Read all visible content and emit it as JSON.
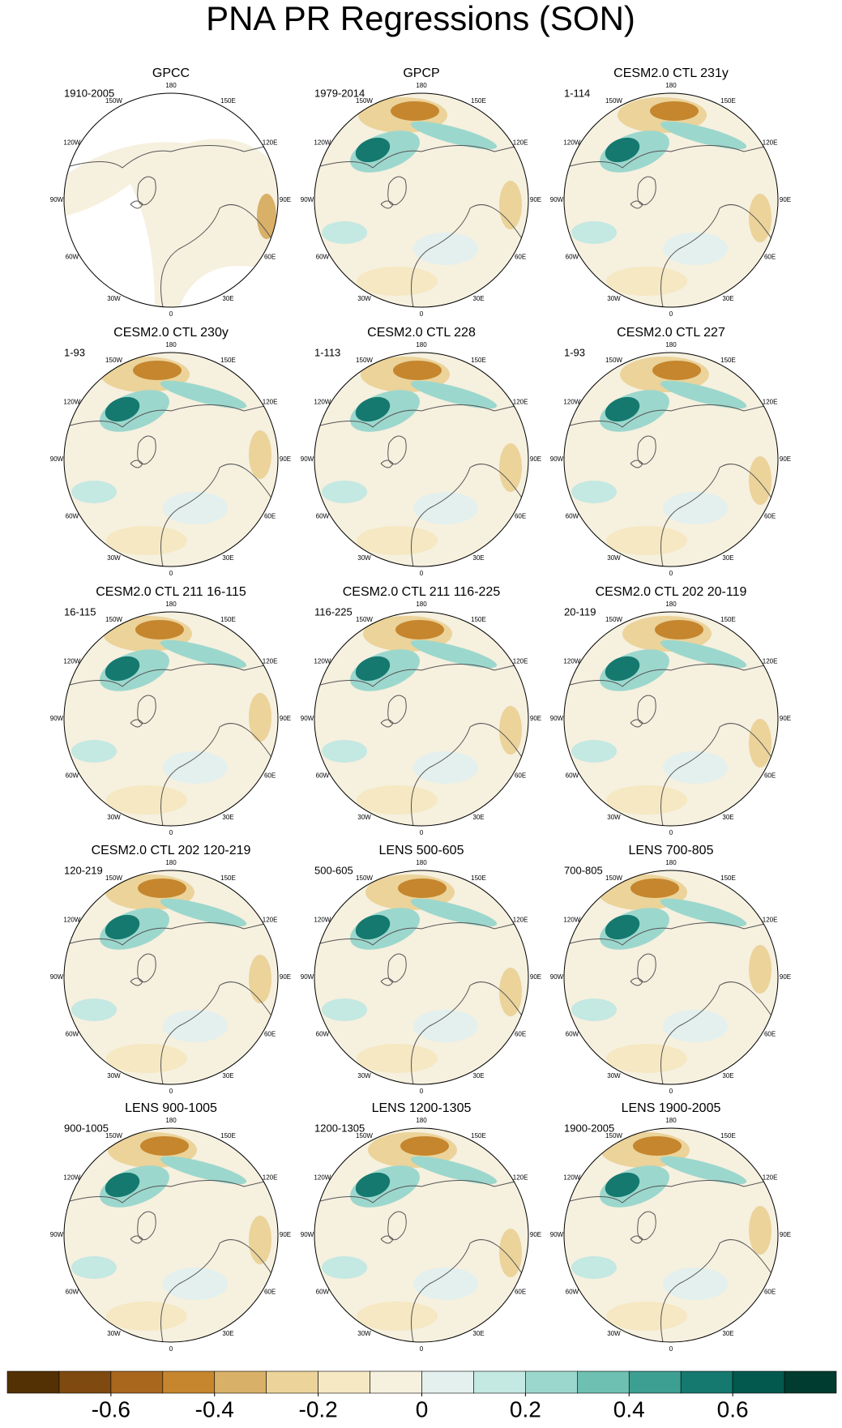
{
  "chart_data": {
    "type": "map-panels",
    "title": "PNA PR Regressions (SON)",
    "lon_labels": [
      "180",
      "150E",
      "120E",
      "90E",
      "60E",
      "30E",
      "0",
      "30W",
      "60W",
      "90W",
      "120W",
      "150W"
    ],
    "panels": [
      {
        "title": "GPCC",
        "period": "1910-2005"
      },
      {
        "title": "GPCP",
        "period": "1979-2014"
      },
      {
        "title": "CESM2.0 CTL 231y",
        "period": "1-114"
      },
      {
        "title": "CESM2.0 CTL 230y",
        "period": "1-93"
      },
      {
        "title": "CESM2.0 CTL 228",
        "period": "1-113"
      },
      {
        "title": "CESM2.0 CTL 227",
        "period": "1-93"
      },
      {
        "title": "CESM2.0 CTL 211 16-115",
        "period": "16-115"
      },
      {
        "title": "CESM2.0 CTL 211 116-225",
        "period": "116-225"
      },
      {
        "title": "CESM2.0 CTL 202 20-119",
        "period": "20-119"
      },
      {
        "title": "CESM2.0 CTL 202 120-219",
        "period": "120-219"
      },
      {
        "title": "LENS 500-605",
        "period": "500-605"
      },
      {
        "title": "LENS 700-805",
        "period": "700-805"
      },
      {
        "title": "LENS 900-1005",
        "period": "900-1005"
      },
      {
        "title": "LENS 1200-1305",
        "period": "1200-1305"
      },
      {
        "title": "LENS 1900-2005",
        "period": "1900-2005"
      }
    ],
    "colorbar": {
      "xlim": [
        -0.8,
        0.8
      ],
      "bounds": [
        -0.8,
        -0.7,
        -0.6,
        -0.5,
        -0.4,
        -0.3,
        -0.2,
        -0.1,
        0,
        0.1,
        0.2,
        0.3,
        0.4,
        0.5,
        0.6,
        0.7,
        0.8
      ],
      "colors": [
        "#543005",
        "#7f4a10",
        "#a8671d",
        "#c5862e",
        "#d8b067",
        "#ebd39a",
        "#f5e8c2",
        "#f6f0df",
        "#e3f0ee",
        "#c4e8e2",
        "#9cd7cd",
        "#6ec0b2",
        "#3d9e92",
        "#15796f",
        "#03594e",
        "#003c30"
      ],
      "xticks": [
        -0.6,
        -0.4,
        -0.2,
        0,
        0.2,
        0.4,
        0.6
      ]
    }
  }
}
